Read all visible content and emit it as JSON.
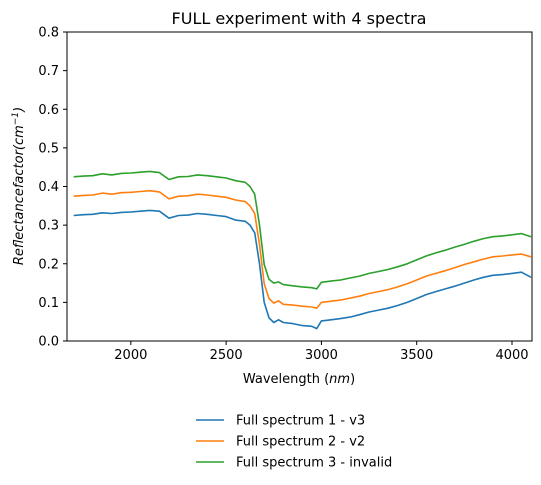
{
  "chart_data": {
    "type": "line",
    "title": "FULL experiment with 4 spectra",
    "xlabel": "Wavelength (nm)",
    "ylabel": "Reflectancefactor(cm⁻¹)",
    "xlim": [
      1665,
      4105
    ],
    "ylim": [
      0.0,
      0.8
    ],
    "xticks": [
      2000,
      2500,
      3000,
      3500,
      4000
    ],
    "yticks": [
      0.0,
      0.1,
      0.2,
      0.3,
      0.4,
      0.5,
      0.6,
      0.7,
      0.8
    ],
    "grid": false,
    "legend_position": "below the plot, centered",
    "x": [
      1700,
      1750,
      1800,
      1850,
      1900,
      1950,
      2000,
      2050,
      2100,
      2150,
      2200,
      2250,
      2300,
      2350,
      2400,
      2450,
      2500,
      2550,
      2600,
      2625,
      2650,
      2675,
      2700,
      2725,
      2750,
      2775,
      2800,
      2850,
      2900,
      2950,
      2975,
      3000,
      3050,
      3100,
      3150,
      3200,
      3250,
      3300,
      3350,
      3400,
      3450,
      3500,
      3550,
      3600,
      3650,
      3700,
      3750,
      3800,
      3850,
      3900,
      3950,
      4000,
      4050,
      4100
    ],
    "series": [
      {
        "name": "Full spectrum 1 - v3",
        "color": "#1f77b4",
        "values": [
          0.325,
          0.327,
          0.328,
          0.332,
          0.33,
          0.333,
          0.334,
          0.336,
          0.338,
          0.336,
          0.318,
          0.325,
          0.326,
          0.33,
          0.328,
          0.325,
          0.322,
          0.313,
          0.31,
          0.3,
          0.28,
          0.2,
          0.1,
          0.06,
          0.048,
          0.055,
          0.048,
          0.045,
          0.04,
          0.038,
          0.032,
          0.052,
          0.055,
          0.058,
          0.062,
          0.068,
          0.075,
          0.08,
          0.085,
          0.092,
          0.1,
          0.11,
          0.12,
          0.128,
          0.135,
          0.142,
          0.15,
          0.158,
          0.165,
          0.17,
          0.172,
          0.175,
          0.178,
          0.165
        ]
      },
      {
        "name": "Full spectrum 2 - v2",
        "color": "#ff7f0e",
        "values": [
          0.375,
          0.377,
          0.378,
          0.383,
          0.38,
          0.384,
          0.385,
          0.387,
          0.389,
          0.386,
          0.368,
          0.375,
          0.376,
          0.38,
          0.378,
          0.375,
          0.372,
          0.365,
          0.361,
          0.35,
          0.33,
          0.25,
          0.148,
          0.11,
          0.098,
          0.104,
          0.095,
          0.093,
          0.09,
          0.088,
          0.085,
          0.1,
          0.103,
          0.106,
          0.111,
          0.116,
          0.123,
          0.128,
          0.133,
          0.14,
          0.148,
          0.158,
          0.168,
          0.175,
          0.182,
          0.19,
          0.198,
          0.205,
          0.212,
          0.218,
          0.22,
          0.223,
          0.225,
          0.218
        ]
      },
      {
        "name": "Full spectrum 3 - invalid",
        "color": "#2ca02c",
        "values": [
          0.425,
          0.427,
          0.428,
          0.433,
          0.43,
          0.434,
          0.435,
          0.437,
          0.439,
          0.436,
          0.418,
          0.425,
          0.426,
          0.43,
          0.428,
          0.425,
          0.422,
          0.415,
          0.411,
          0.4,
          0.38,
          0.3,
          0.198,
          0.16,
          0.15,
          0.153,
          0.146,
          0.143,
          0.14,
          0.138,
          0.135,
          0.152,
          0.155,
          0.158,
          0.163,
          0.168,
          0.175,
          0.18,
          0.185,
          0.192,
          0.2,
          0.21,
          0.22,
          0.228,
          0.235,
          0.243,
          0.25,
          0.258,
          0.265,
          0.27,
          0.272,
          0.275,
          0.278,
          0.27
        ]
      }
    ]
  }
}
